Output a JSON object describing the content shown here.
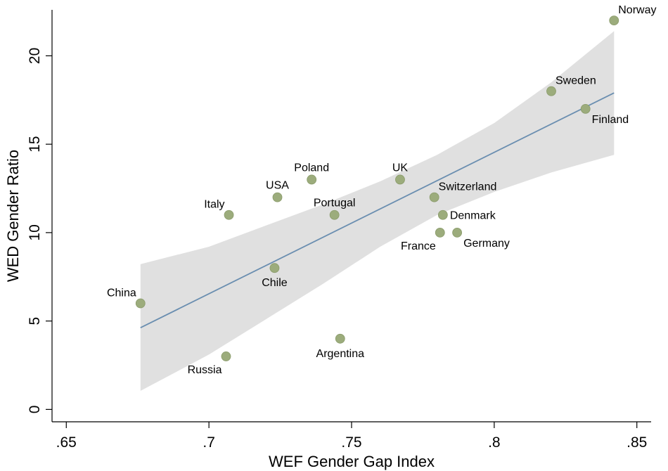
{
  "chart_data": {
    "type": "scatter",
    "xlabel": "WEF Gender Gap Index",
    "ylabel": "WED Gender Ratio",
    "xlim": [
      0.645,
      0.855
    ],
    "ylim": [
      -0.7,
      22.6
    ],
    "x_ticks": [
      0.65,
      0.7,
      0.75,
      0.8,
      0.85
    ],
    "x_tick_labels": [
      ".65",
      ".7",
      ".75",
      ".8",
      ".85"
    ],
    "y_ticks": [
      0,
      5,
      10,
      15,
      20
    ],
    "y_tick_labels": [
      "0",
      "5",
      "10",
      "15",
      "20"
    ],
    "grid": false,
    "points": [
      {
        "label": "Norway",
        "x": 0.842,
        "y": 22,
        "label_pos": "above-right"
      },
      {
        "label": "Sweden",
        "x": 0.82,
        "y": 18,
        "label_pos": "above-right"
      },
      {
        "label": "Finland",
        "x": 0.832,
        "y": 17,
        "label_pos": "below-right"
      },
      {
        "label": "UK",
        "x": 0.767,
        "y": 13,
        "label_pos": "above"
      },
      {
        "label": "Poland",
        "x": 0.736,
        "y": 13,
        "label_pos": "above"
      },
      {
        "label": "USA",
        "x": 0.724,
        "y": 12,
        "label_pos": "above"
      },
      {
        "label": "Switzerland",
        "x": 0.779,
        "y": 12,
        "label_pos": "above-right"
      },
      {
        "label": "Italy",
        "x": 0.707,
        "y": 11,
        "label_pos": "above-left"
      },
      {
        "label": "Portugal",
        "x": 0.744,
        "y": 11,
        "label_pos": "above"
      },
      {
        "label": "Denmark",
        "x": 0.782,
        "y": 11,
        "label_pos": "right"
      },
      {
        "label": "France",
        "x": 0.781,
        "y": 10,
        "label_pos": "below-left"
      },
      {
        "label": "Germany",
        "x": 0.787,
        "y": 10,
        "label_pos": "below-right"
      },
      {
        "label": "Chile",
        "x": 0.723,
        "y": 8,
        "label_pos": "below"
      },
      {
        "label": "China",
        "x": 0.676,
        "y": 6,
        "label_pos": "above-left"
      },
      {
        "label": "Argentina",
        "x": 0.746,
        "y": 4,
        "label_pos": "below"
      },
      {
        "label": "Russia",
        "x": 0.706,
        "y": 3,
        "label_pos": "below-left"
      }
    ],
    "fit_line": {
      "x": [
        0.676,
        0.842
      ],
      "y": [
        4.62,
        17.9
      ]
    },
    "confidence_band": {
      "x": [
        0.676,
        0.7,
        0.72,
        0.74,
        0.76,
        0.78,
        0.8,
        0.82,
        0.842
      ],
      "upper": [
        8.22,
        9.2,
        10.4,
        11.6,
        12.9,
        14.4,
        16.2,
        18.5,
        21.4
      ],
      "lower": [
        1.05,
        3.1,
        5.1,
        7.1,
        9.2,
        11.0,
        12.3,
        13.4,
        14.4
      ]
    },
    "colors": {
      "point": "#9cac7c",
      "fit_line": "#6a8eb0",
      "band": "#e0e0e0"
    }
  }
}
